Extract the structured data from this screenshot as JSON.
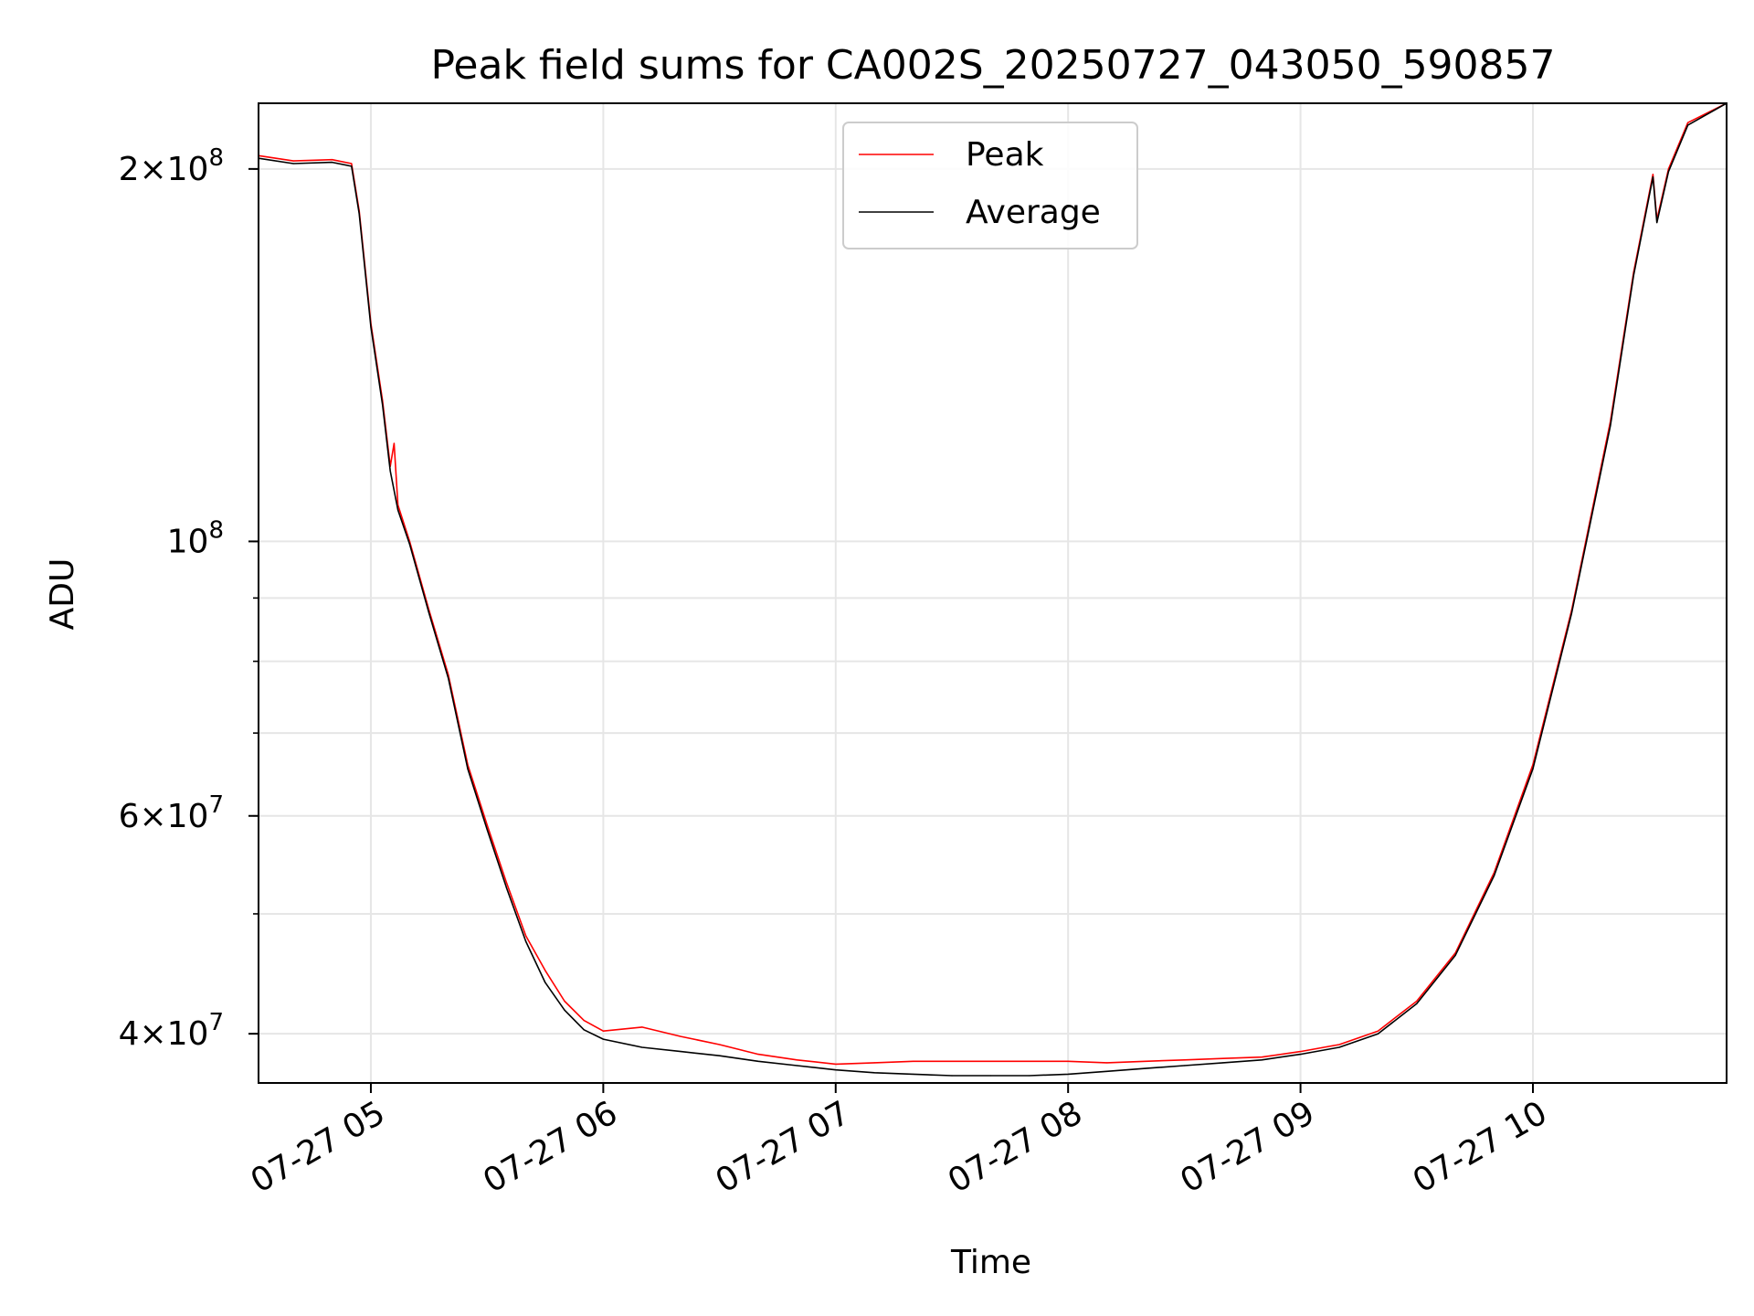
{
  "chart_data": {
    "type": "line",
    "title": "Peak field sums for CA002S_20250727_043050_590857",
    "xlabel": "Time",
    "ylabel": "ADU",
    "yscale": "log",
    "ylim": [
      36500000,
      226000000
    ],
    "xlim": [
      "2025-07-27 04:31:00",
      "2025-07-27 10:50:00"
    ],
    "x_ticks": [
      "07-27 05",
      "07-27 06",
      "07-27 07",
      "07-27 08",
      "07-27 09",
      "07-27 10"
    ],
    "y_tick_labels": [
      {
        "value": 200000000,
        "mant": "2",
        "exp": "8"
      },
      {
        "value": 100000000,
        "mant": "",
        "exp": "8"
      },
      {
        "value": 60000000,
        "mant": "6",
        "exp": "7"
      },
      {
        "value": 40000000,
        "mant": "4",
        "exp": "7"
      }
    ],
    "y_minor_gridlines": [
      200000000,
      100000000,
      90000000,
      80000000,
      70000000,
      60000000,
      50000000,
      40000000
    ],
    "grid": true,
    "legend_position": "upper-center",
    "legend_entries": [
      "Peak",
      "Average"
    ],
    "series": [
      {
        "name": "Peak",
        "color": "#ff0000",
        "x": [
          "04:31",
          "04:40",
          "04:50",
          "04:55",
          "04:57",
          "05:00",
          "05:03",
          "05:05",
          "05:06",
          "05:07",
          "05:10",
          "05:15",
          "05:20",
          "05:25",
          "05:30",
          "05:35",
          "05:40",
          "05:45",
          "05:50",
          "05:55",
          "06:00",
          "06:10",
          "06:20",
          "06:30",
          "06:40",
          "06:50",
          "07:00",
          "07:10",
          "07:20",
          "07:30",
          "07:40",
          "07:50",
          "08:00",
          "08:10",
          "08:20",
          "08:30",
          "08:40",
          "08:50",
          "09:00",
          "09:10",
          "09:20",
          "09:30",
          "09:40",
          "09:50",
          "10:00",
          "10:10",
          "10:20",
          "10:26",
          "10:31",
          "10:32",
          "10:35",
          "10:40",
          "10:50"
        ],
        "y": [
          205000000,
          203000000,
          203500000,
          202000000,
          185000000,
          150000000,
          130000000,
          115000000,
          120000000,
          107000000,
          100000000,
          88000000,
          78000000,
          66000000,
          59000000,
          53000000,
          48000000,
          45000000,
          42500000,
          41000000,
          40200000,
          40500000,
          39800000,
          39200000,
          38500000,
          38100000,
          37800000,
          37900000,
          38000000,
          38000000,
          38000000,
          38000000,
          38000000,
          37900000,
          38000000,
          38100000,
          38200000,
          38300000,
          38700000,
          39200000,
          40200000,
          42500000,
          46500000,
          54000000,
          66000000,
          88000000,
          125000000,
          165000000,
          198000000,
          182000000,
          200000000,
          218000000,
          226000000
        ]
      },
      {
        "name": "Average",
        "color": "#000000",
        "x": [
          "04:31",
          "04:40",
          "04:50",
          "04:55",
          "04:57",
          "05:00",
          "05:03",
          "05:05",
          "05:07",
          "05:10",
          "05:15",
          "05:20",
          "05:25",
          "05:30",
          "05:35",
          "05:40",
          "05:45",
          "05:50",
          "05:55",
          "06:00",
          "06:10",
          "06:20",
          "06:30",
          "06:40",
          "06:50",
          "07:00",
          "07:10",
          "07:20",
          "07:30",
          "07:40",
          "07:50",
          "08:00",
          "08:10",
          "08:20",
          "08:30",
          "08:40",
          "08:50",
          "09:00",
          "09:10",
          "09:20",
          "09:30",
          "09:40",
          "09:50",
          "10:00",
          "10:10",
          "10:20",
          "10:26",
          "10:31",
          "10:32",
          "10:35",
          "10:40",
          "10:50"
        ],
        "y": [
          204000000,
          202000000,
          202500000,
          201000000,
          184000000,
          149000000,
          129000000,
          114000000,
          106000000,
          99500000,
          87500000,
          77500000,
          65500000,
          58500000,
          52500000,
          47500000,
          44000000,
          41800000,
          40300000,
          39600000,
          39000000,
          38700000,
          38400000,
          38000000,
          37700000,
          37400000,
          37200000,
          37100000,
          37000000,
          37000000,
          37000000,
          37100000,
          37300000,
          37500000,
          37700000,
          37900000,
          38100000,
          38500000,
          39000000,
          40000000,
          42300000,
          46300000,
          53700000,
          65500000,
          87500000,
          124000000,
          164000000,
          197000000,
          181000000,
          199000000,
          217000000,
          226000000
        ]
      }
    ]
  }
}
